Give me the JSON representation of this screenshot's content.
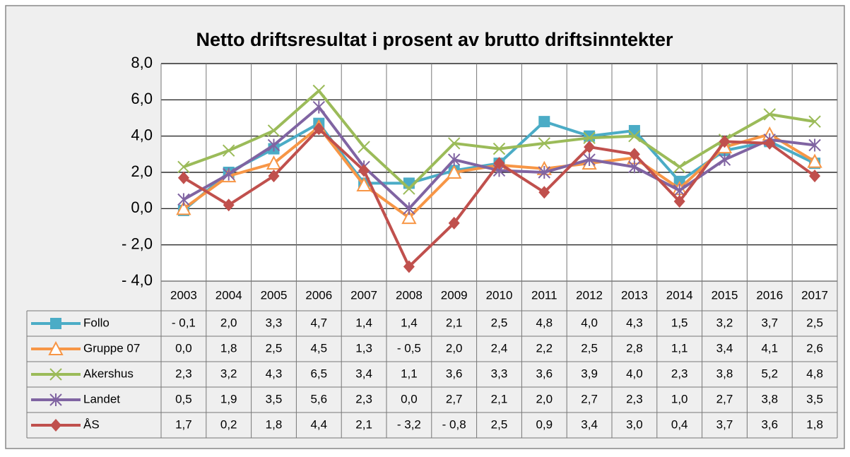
{
  "chart_data": {
    "type": "line",
    "title": "Netto driftsresultat i prosent av brutto driftsinntekter",
    "categories": [
      "2003",
      "2004",
      "2005",
      "2006",
      "2007",
      "2008",
      "2009",
      "2010",
      "2011",
      "2012",
      "2013",
      "2014",
      "2015",
      "2016",
      "2017"
    ],
    "ylim": [
      -4,
      8
    ],
    "yticks": [
      {
        "value": -4,
        "label": "- 4,0"
      },
      {
        "value": -2,
        "label": "- 2,0"
      },
      {
        "value": 0,
        "label": "0,0"
      },
      {
        "value": 2,
        "label": "2,0"
      },
      {
        "value": 4,
        "label": "4,0"
      },
      {
        "value": 6,
        "label": "6,0"
      },
      {
        "value": 8,
        "label": "8,0"
      }
    ],
    "grid": true,
    "series": [
      {
        "name": "Follo",
        "color": "#4bacc6",
        "marker": "square",
        "values": [
          -0.1,
          2.0,
          3.3,
          4.7,
          1.4,
          1.4,
          2.1,
          2.5,
          4.8,
          4.0,
          4.3,
          1.5,
          3.2,
          3.7,
          2.5
        ],
        "value_labels": [
          "- 0,1",
          "2,0",
          "3,3",
          "4,7",
          "1,4",
          "1,4",
          "2,1",
          "2,5",
          "4,8",
          "4,0",
          "4,3",
          "1,5",
          "3,2",
          "3,7",
          "2,5"
        ]
      },
      {
        "name": "Gruppe 07",
        "color": "#f79646",
        "marker": "triangle",
        "values": [
          0.0,
          1.8,
          2.5,
          4.5,
          1.3,
          -0.5,
          2.0,
          2.4,
          2.2,
          2.5,
          2.8,
          1.1,
          3.4,
          4.1,
          2.6
        ],
        "value_labels": [
          "0,0",
          "1,8",
          "2,5",
          "4,5",
          "1,3",
          "- 0,5",
          "2,0",
          "2,4",
          "2,2",
          "2,5",
          "2,8",
          "1,1",
          "3,4",
          "4,1",
          "2,6"
        ]
      },
      {
        "name": "Akershus",
        "color": "#9bbb59",
        "marker": "x",
        "values": [
          2.3,
          3.2,
          4.3,
          6.5,
          3.4,
          1.1,
          3.6,
          3.3,
          3.6,
          3.9,
          4.0,
          2.3,
          3.8,
          5.2,
          4.8
        ],
        "value_labels": [
          "2,3",
          "3,2",
          "4,3",
          "6,5",
          "3,4",
          "1,1",
          "3,6",
          "3,3",
          "3,6",
          "3,9",
          "4,0",
          "2,3",
          "3,8",
          "5,2",
          "4,8"
        ]
      },
      {
        "name": "Landet",
        "color": "#8064a2",
        "marker": "star",
        "values": [
          0.5,
          1.9,
          3.5,
          5.6,
          2.3,
          0.0,
          2.7,
          2.1,
          2.0,
          2.7,
          2.3,
          1.0,
          2.7,
          3.8,
          3.5
        ],
        "value_labels": [
          "0,5",
          "1,9",
          "3,5",
          "5,6",
          "2,3",
          "0,0",
          "2,7",
          "2,1",
          "2,0",
          "2,7",
          "2,3",
          "1,0",
          "2,7",
          "3,8",
          "3,5"
        ]
      },
      {
        "name": "ÅS",
        "color": "#c0504d",
        "marker": "diamond",
        "values": [
          1.7,
          0.2,
          1.8,
          4.4,
          2.1,
          -3.2,
          -0.8,
          2.5,
          0.9,
          3.4,
          3.0,
          0.4,
          3.7,
          3.6,
          1.8
        ],
        "value_labels": [
          "1,7",
          "0,2",
          "1,8",
          "4,4",
          "2,1",
          "- 3,2",
          "- 0,8",
          "2,5",
          "0,9",
          "3,4",
          "3,0",
          "0,4",
          "3,7",
          "3,6",
          "1,8"
        ]
      }
    ]
  }
}
